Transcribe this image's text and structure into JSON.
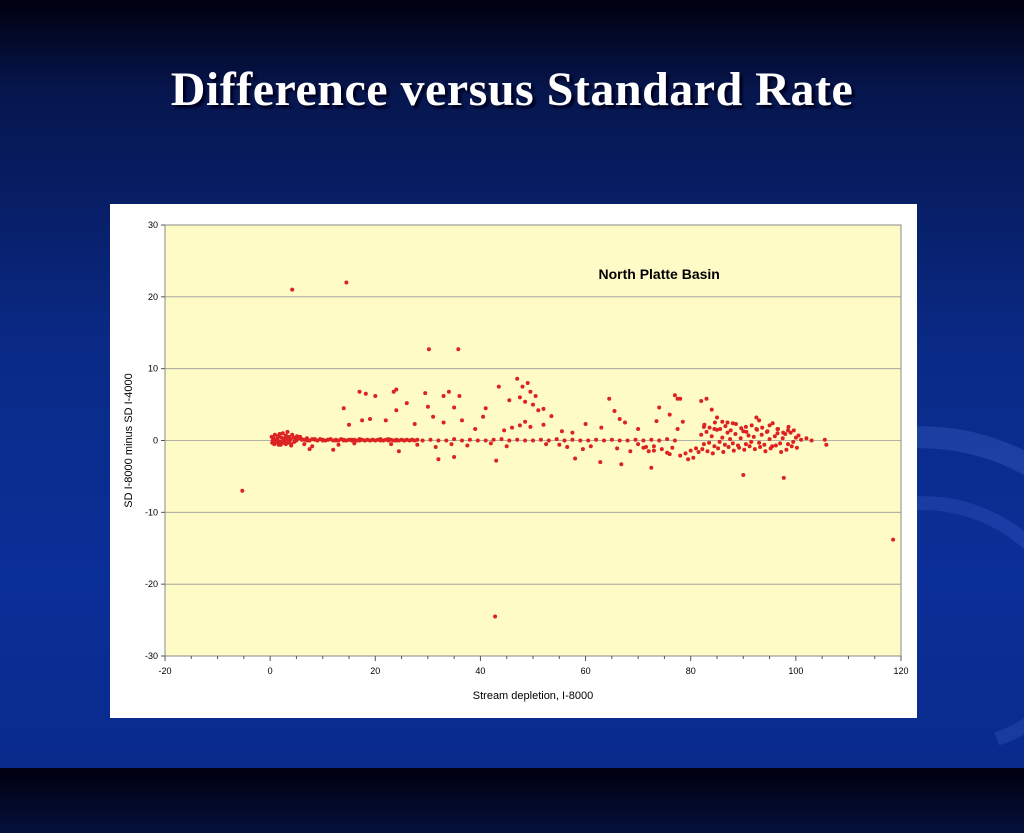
{
  "slide": {
    "title": "Difference versus Standard Rate"
  },
  "colors": {
    "plot_bg": "#fffbc6",
    "marker": "#dd2222",
    "grid": "#999999"
  },
  "chart_data": {
    "type": "scatter",
    "title": "",
    "annotation": "North Platte Basin",
    "xlabel": "Stream depletion, I-8000",
    "ylabel": "SD I-8000 minus SD I-4000",
    "xlim": [
      -20,
      120
    ],
    "ylim": [
      -30,
      30
    ],
    "x_ticks": [
      -20,
      0,
      20,
      40,
      60,
      80,
      100,
      120
    ],
    "y_ticks": [
      -30,
      -20,
      -10,
      0,
      10,
      20,
      30
    ],
    "grid": "horizontal",
    "x": [
      -5.3,
      4.2,
      14.5,
      30.2,
      35.8,
      118.5,
      42.8,
      90.0,
      97.7,
      72.5,
      66.8,
      62.8,
      58.0,
      12.0,
      24.5,
      3.0,
      35.0,
      32.0,
      43.0,
      7.5,
      0.3,
      0.6,
      0.9,
      1.2,
      1.5,
      1.8,
      2.1,
      2.4,
      2.7,
      3.0,
      3.3,
      3.6,
      3.9,
      4.2,
      4.5,
      4.8,
      5.1,
      5.4,
      5.7,
      6.0,
      6.5,
      7.0,
      7.5,
      8.0,
      8.5,
      9.0,
      9.5,
      10.0,
      10.5,
      11.0,
      11.5,
      12.0,
      12.5,
      13.0,
      13.5,
      14.0,
      14.5,
      15.0,
      15.5,
      16.0,
      16.5,
      17.0,
      17.5,
      18.0,
      18.5,
      19.0,
      19.5,
      20.0,
      20.5,
      21.0,
      21.5,
      22.0,
      22.5,
      23.0,
      23.5,
      24.0,
      24.5,
      25.0,
      25.5,
      26.0,
      26.5,
      27.0,
      27.5,
      28.0,
      0.4,
      0.8,
      1.1,
      1.6,
      2.2,
      2.8,
      3.4,
      4.0,
      4.6,
      0.5,
      1.0,
      1.4,
      1.9,
      2.5,
      3.1,
      3.7,
      0.7,
      1.3,
      2.0,
      2.6,
      5.0,
      6.0,
      7.0,
      8.5,
      10.0,
      11.0,
      12.5,
      14.0,
      15.5,
      17.0,
      18.0,
      19.5,
      21.0,
      22.5,
      24.0,
      25.5,
      27.0,
      29.0,
      30.5,
      32.0,
      33.5,
      35.0,
      36.5,
      38.0,
      39.5,
      41.0,
      42.5,
      44.0,
      45.5,
      47.0,
      48.5,
      50.0,
      51.5,
      53.0,
      54.5,
      56.0,
      57.5,
      59.0,
      60.5,
      62.0,
      63.5,
      65.0,
      66.5,
      68.0,
      69.5,
      71.0,
      72.5,
      74.0,
      75.5,
      77.0,
      17.0,
      17.5,
      18.2,
      19.0,
      20.0,
      23.5,
      24.0,
      26.0,
      29.5,
      30.0,
      33.0,
      34.0,
      35.0,
      36.0,
      41.0,
      43.5,
      45.5,
      47.0,
      47.5,
      48.0,
      48.5,
      49.0,
      49.5,
      50.0,
      50.5,
      51.0,
      52.0,
      53.5,
      64.5,
      65.5,
      66.5,
      74.0,
      77.0,
      77.5,
      78.0,
      82.0,
      83.0,
      84.0,
      85.0,
      86.0,
      87.0,
      92.5,
      93.0,
      14.0,
      15.0,
      22.0,
      24.0,
      27.5,
      31.0,
      33.0,
      36.5,
      39.0,
      40.5,
      44.5,
      46.0,
      47.5,
      48.5,
      49.5,
      52.0,
      55.5,
      57.5,
      60.0,
      63.0,
      67.5,
      70.0,
      73.5,
      76.0,
      77.5,
      78.5,
      82.5,
      84.5,
      88.0,
      90.5,
      95.0,
      96.5,
      98.5,
      2.0,
      4.0,
      6.5,
      8.0,
      13.0,
      16.0,
      23.0,
      28.0,
      31.5,
      34.5,
      37.5,
      42.0,
      45.0,
      52.5,
      55.0,
      56.5,
      59.5,
      61.0,
      66.0,
      68.5,
      71.5,
      73.0,
      76.5,
      79.0,
      80.5,
      81.5,
      82.0,
      82.5,
      83.0,
      83.5,
      84.0,
      84.5,
      85.0,
      85.5,
      86.0,
      86.5,
      87.0,
      87.5,
      88.0,
      88.5,
      89.0,
      89.5,
      90.0,
      90.5,
      91.0,
      91.5,
      92.0,
      92.5,
      93.0,
      93.5,
      94.0,
      94.5,
      95.0,
      95.5,
      96.0,
      96.5,
      97.0,
      97.5,
      98.0,
      98.5,
      99.0,
      99.5,
      100.0,
      100.5,
      101.0,
      102.0,
      103.0,
      105.5,
      105.8,
      82.2,
      83.2,
      84.2,
      85.2,
      86.2,
      87.2,
      88.2,
      89.2,
      90.2,
      91.2,
      92.2,
      93.2,
      94.2,
      95.2,
      96.2,
      97.2,
      98.2,
      99.2,
      100.2,
      82.6,
      83.6,
      84.6,
      85.6,
      86.6,
      87.6,
      88.6,
      89.6,
      90.6,
      91.6,
      92.6,
      93.6,
      94.6,
      95.6,
      96.6,
      97.6,
      98.6,
      99.6,
      70.0,
      71.0,
      72.0,
      73.0,
      74.5,
      75.5,
      76.0,
      78.0,
      79.5,
      80.0,
      81.0
    ],
    "y": [
      -7.0,
      21.0,
      22.0,
      12.7,
      12.7,
      -13.8,
      -24.5,
      -4.8,
      -5.2,
      -3.8,
      -3.3,
      -3.0,
      -2.5,
      -1.3,
      -1.5,
      -0.5,
      -2.3,
      -2.6,
      -2.8,
      -1.2,
      0.5,
      0.3,
      0.8,
      0.2,
      0.6,
      0.9,
      0.4,
      1.0,
      0.3,
      0.7,
      1.2,
      0.5,
      0.2,
      0.8,
      0.4,
      0.1,
      0.6,
      0.3,
      0.5,
      0.2,
      0.1,
      0.3,
      0.0,
      0.2,
      0.1,
      0.0,
      0.2,
      0.1,
      0.0,
      0.1,
      0.2,
      0.0,
      0.1,
      0.0,
      0.2,
      0.1,
      0.0,
      0.1,
      0.0,
      0.1,
      0.0,
      0.2,
      0.1,
      0.0,
      0.1,
      0.0,
      0.1,
      0.0,
      0.1,
      0.2,
      0.0,
      0.1,
      0.0,
      0.1,
      0.0,
      0.1,
      0.0,
      0.1,
      0.0,
      0.1,
      0.0,
      0.1,
      0.0,
      0.1,
      -0.3,
      -0.5,
      -0.2,
      -0.6,
      -0.4,
      -0.1,
      -0.3,
      -0.5,
      -0.2,
      0.0,
      -0.1,
      0.1,
      -0.2,
      0.0,
      0.2,
      0.0,
      -0.4,
      -0.2,
      -0.6,
      -0.3,
      0.0,
      0.1,
      0.0,
      0.2,
      0.0,
      0.1,
      0.0,
      0.0,
      0.1,
      0.0,
      0.0,
      0.1,
      0.0,
      0.2,
      0.0,
      0.0,
      0.1,
      0.0,
      0.1,
      0.0,
      0.0,
      0.2,
      0.0,
      0.1,
      0.0,
      0.0,
      0.1,
      0.2,
      0.0,
      0.1,
      0.0,
      0.0,
      0.1,
      0.0,
      0.2,
      0.0,
      0.1,
      0.0,
      0.0,
      0.1,
      0.0,
      0.1,
      0.0,
      0.0,
      0.1,
      0.0,
      0.1,
      0.0,
      0.2,
      0.0,
      6.8,
      2.8,
      6.5,
      3.0,
      6.2,
      6.8,
      7.1,
      5.2,
      6.6,
      4.7,
      6.2,
      6.8,
      4.6,
      6.2,
      4.5,
      7.5,
      5.6,
      8.6,
      6.0,
      7.5,
      5.4,
      8.0,
      6.8,
      5.0,
      6.2,
      4.2,
      4.4,
      3.4,
      5.8,
      4.1,
      3.0,
      4.6,
      6.3,
      5.8,
      5.8,
      5.5,
      5.8,
      4.3,
      3.2,
      2.6,
      2.5,
      3.2,
      2.8,
      4.5,
      2.2,
      2.8,
      4.2,
      2.3,
      3.3,
      2.5,
      2.8,
      1.6,
      3.3,
      1.4,
      1.8,
      2.1,
      2.6,
      1.9,
      2.2,
      1.3,
      1.1,
      2.3,
      1.8,
      2.5,
      1.6,
      2.7,
      3.6,
      1.6,
      2.6,
      1.9,
      1.6,
      2.4,
      1.9,
      2.1,
      1.6,
      1.4,
      -0.4,
      -0.7,
      -0.5,
      -0.8,
      -0.6,
      -0.4,
      -0.5,
      -0.6,
      -0.9,
      -0.5,
      -0.7,
      -0.4,
      -0.8,
      -0.5,
      -0.6,
      -0.9,
      -1.2,
      -0.8,
      -1.1,
      -1.5,
      -0.9,
      -1.4,
      -1.0,
      -1.8,
      -2.4,
      -1.6,
      0.8,
      -0.5,
      1.2,
      -0.3,
      0.6,
      -0.8,
      1.5,
      -0.2,
      0.4,
      -0.6,
      1.1,
      0.2,
      -0.4,
      0.9,
      -0.7,
      0.3,
      1.3,
      -0.5,
      0.7,
      -0.2,
      0.5,
      1.6,
      -0.3,
      0.8,
      -0.6,
      1.2,
      0.2,
      -0.8,
      0.6,
      1.0,
      -0.4,
      0.3,
      0.9,
      -0.5,
      1.1,
      -0.2,
      0.4,
      0.7,
      0.1,
      0.3,
      0.0,
      0.1,
      -0.6,
      -1.2,
      -1.5,
      -1.8,
      -1.1,
      -1.6,
      -0.9,
      -1.4,
      -1.0,
      -1.3,
      -0.8,
      -1.2,
      -0.9,
      -1.5,
      -1.1,
      -0.7,
      -1.6,
      -1.3,
      -0.8,
      -1.0,
      2.2,
      1.8,
      2.5,
      1.6,
      2.0,
      1.4,
      2.3,
      1.7,
      1.2,
      2.1,
      1.5,
      1.8,
      1.3,
      2.4,
      1.6,
      1.1,
      1.9,
      1.4,
      -0.5,
      -1.0,
      -1.5,
      -0.8,
      -1.2,
      -1.7,
      -1.9,
      -2.1,
      -2.6,
      -1.4,
      -1.1
    ]
  }
}
